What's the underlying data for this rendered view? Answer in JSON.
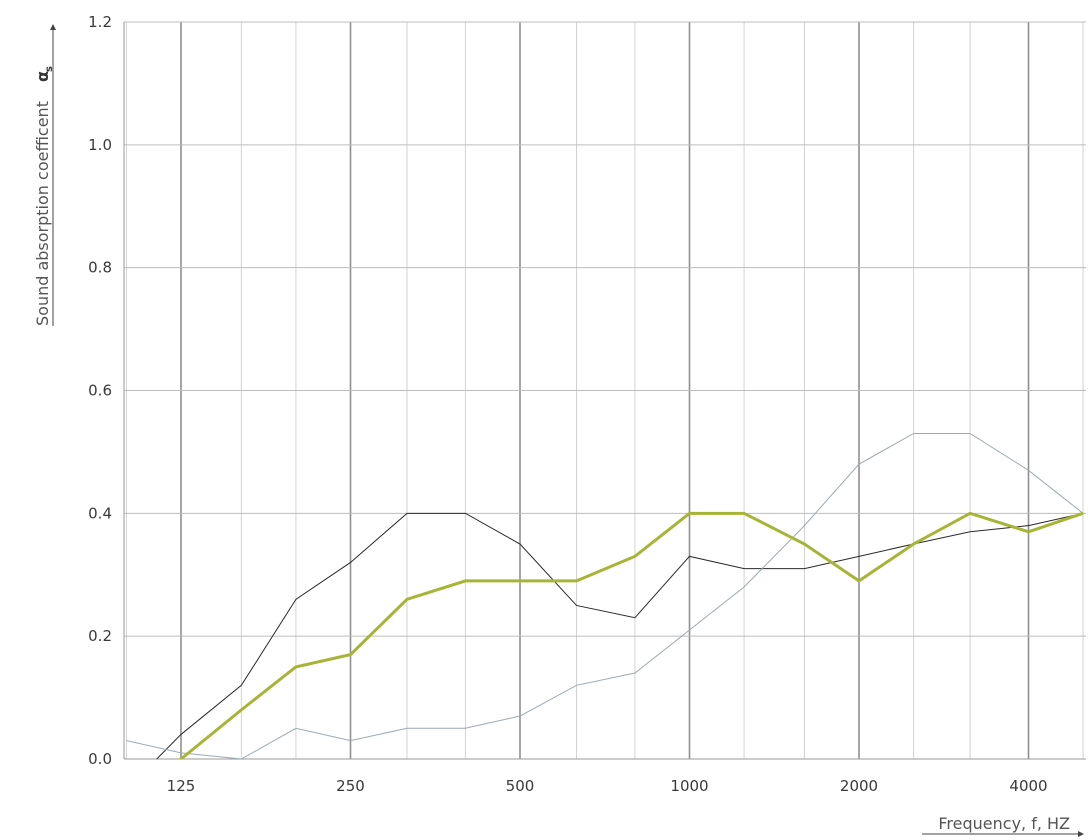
{
  "chart_data": {
    "type": "line",
    "title": "",
    "xlabel": "Frequency, f, HZ",
    "ylabel": "Sound absorption coefficent",
    "ylabel_symbol": "α",
    "ylabel_subscript": "s",
    "x_scale": "log (third-octave bands)",
    "x": [
      100,
      125,
      160,
      200,
      250,
      315,
      400,
      500,
      630,
      800,
      1000,
      1250,
      1600,
      2000,
      2500,
      3150,
      4000,
      5000
    ],
    "x_tick_labels": [
      "125",
      "250",
      "500",
      "1000",
      "2000",
      "4000"
    ],
    "x_tick_values": [
      125,
      250,
      500,
      1000,
      2000,
      4000
    ],
    "y_tick_labels": [
      "0.0",
      "0.2",
      "0.4",
      "0.6",
      "0.8",
      "1.0",
      "1.2"
    ],
    "y_tick_values": [
      0.0,
      0.2,
      0.4,
      0.6,
      0.8,
      1.0,
      1.2
    ],
    "ylim": [
      0.0,
      1.2
    ],
    "grid": true,
    "legend": "none",
    "series": [
      {
        "color": "#2a2a2a",
        "width": 1,
        "values": [
          -0.05,
          0.04,
          0.12,
          0.26,
          0.32,
          0.4,
          0.4,
          0.35,
          0.25,
          0.23,
          0.33,
          0.31,
          0.31,
          0.33,
          0.35,
          0.37,
          0.38,
          0.4
        ]
      },
      {
        "color": "#9ba9b4",
        "width": 1,
        "values": [
          0.03,
          0.01,
          0.0,
          0.05,
          0.03,
          0.05,
          0.05,
          0.07,
          0.12,
          0.14,
          0.21,
          0.28,
          0.38,
          0.48,
          0.53,
          0.53,
          0.47,
          0.4
        ]
      },
      {
        "color": "#a6b535",
        "width": 3,
        "values": [
          -0.06,
          0.0,
          0.08,
          0.15,
          0.17,
          0.26,
          0.29,
          0.29,
          0.29,
          0.33,
          0.4,
          0.4,
          0.35,
          0.29,
          0.35,
          0.4,
          0.37,
          0.4
        ]
      }
    ]
  }
}
